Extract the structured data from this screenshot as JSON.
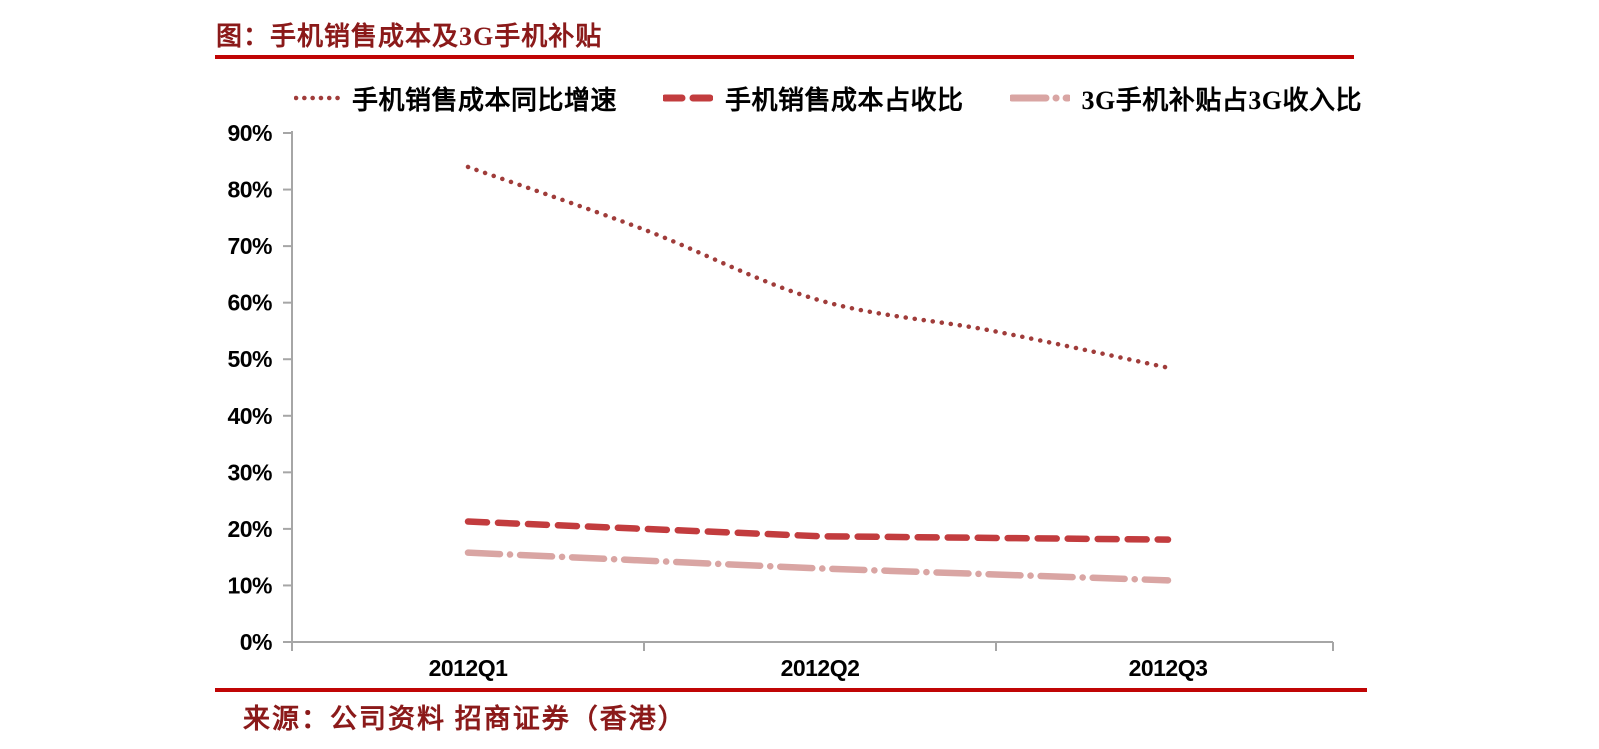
{
  "header": {
    "title": "图：手机销售成本及3G手机补贴",
    "title_color": "#8B1A1A",
    "rule_color": "#C00505"
  },
  "legend": {
    "items": [
      {
        "label": "手机销售成本同比增速",
        "style": "dotted",
        "color": "#A03C3A"
      },
      {
        "label": "手机销售成本占收比",
        "style": "dashed",
        "color": "#C23C3E"
      },
      {
        "label": "3G手机补贴占3G收入比",
        "style": "dashdot",
        "color": "#D9A5A3"
      }
    ]
  },
  "chart_data": {
    "type": "line",
    "title": "手机销售成本及3G手机补贴",
    "categories": [
      "2012Q1",
      "2012Q2",
      "2012Q3"
    ],
    "series": [
      {
        "name": "手机销售成本同比增速",
        "values": [
          84,
          60.5,
          48.5
        ],
        "style": "dotted",
        "color": "#A03C3A",
        "curve_samples": {
          "x_frac": [
            0,
            0.25,
            0.5,
            0.75,
            1
          ],
          "values": [
            84,
            73,
            60.5,
            55,
            48.5
          ]
        }
      },
      {
        "name": "手机销售成本占收比",
        "values": [
          21.3,
          18.7,
          18.1
        ],
        "style": "dashed",
        "color": "#C23C3E"
      },
      {
        "name": "3G手机补贴占3G收入比",
        "values": [
          15.8,
          13,
          10.9
        ],
        "style": "dashdot",
        "color": "#D9A5A3"
      }
    ],
    "xlabel": "",
    "ylabel": "",
    "ylim": [
      0,
      90
    ],
    "ytick_step": 10,
    "ytick_labels": [
      "0%",
      "10%",
      "20%",
      "30%",
      "40%",
      "50%",
      "60%",
      "70%",
      "80%",
      "90%"
    ],
    "grid": false,
    "legend_position": "top",
    "axis_color": "#A6A6A6",
    "tick_label_color": "#000000"
  },
  "footer": {
    "source": "来源：公司资料 招商证券（香港）",
    "source_color": "#8B1A1A",
    "rule_color": "#C00505"
  }
}
